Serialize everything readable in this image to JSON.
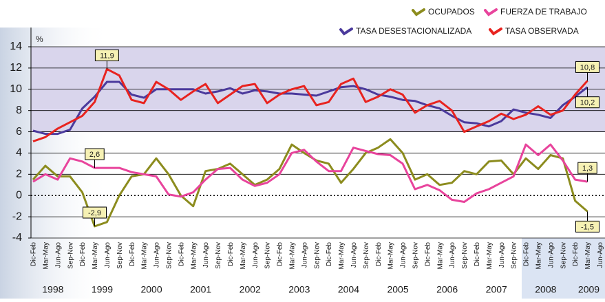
{
  "chart_data": {
    "type": "line",
    "y_unit": "%",
    "categories": [
      "Dic-Feb",
      "Mar-May",
      "Jun-Ago",
      "Sep-Nov",
      "Dic-Feb",
      "Mar-May",
      "Jun-Ago",
      "Sep-Nov",
      "Dic-Feb",
      "Mar-May",
      "Jun-Ago",
      "Sep-Nov",
      "Dic-Feb",
      "Mar-May",
      "Jun-Ago",
      "Sep-Nov",
      "Dic-Feb",
      "Mar-May",
      "Jun-Ago",
      "Sep-Nov",
      "Dic-Feb",
      "Mar-May",
      "Jun-Ago",
      "Sep-Nov",
      "Dic-Feb",
      "Mar-May",
      "Jun-Ago",
      "Sep-Nov",
      "Dic-Feb",
      "Mar-May",
      "Jun-Ago",
      "Sep-Nov",
      "Dic-Feb",
      "Mar-May",
      "Jun-Ago",
      "Sep-Nov",
      "Dic-Feb",
      "Mar-May",
      "Jun-Ago",
      "Sep-Nov",
      "Dic-Feb",
      "Mar-May",
      "Jun-Ago",
      "Sep-Nov",
      "Dic-Feb",
      "Mar-May",
      "Jun-Ago"
    ],
    "years": [
      "1998",
      "1999",
      "2000",
      "2001",
      "2002",
      "2003",
      "2004",
      "2005",
      "2006",
      "2007",
      "2008",
      "2009"
    ],
    "ylim": [
      -4,
      14
    ],
    "yticks": [
      -4,
      -2,
      0,
      2,
      4,
      6,
      8,
      10,
      12,
      14
    ],
    "grid": true,
    "series": [
      {
        "name": "OCUPADOS",
        "color": "#8c8c1e",
        "values": [
          1.5,
          2.8,
          1.8,
          1.8,
          0.3,
          -2.9,
          -2.5,
          0,
          1.8,
          2.0,
          3.5,
          2.0,
          0,
          -1.0,
          2.3,
          2.5,
          3.0,
          2.0,
          1.0,
          1.5,
          2.5,
          4.8,
          4.0,
          3.3,
          3.0,
          1.2,
          2.5,
          4.0,
          4.5,
          5.3,
          4.0,
          1.5,
          2.0,
          1.0,
          1.2,
          2.3,
          2.0,
          3.2,
          3.3,
          2.0,
          3.5,
          2.5,
          3.8,
          3.5,
          -0.5,
          -1.5,
          null
        ],
        "value_labels": [
          null,
          null,
          null,
          null,
          null,
          "-2,9",
          null,
          null,
          null,
          null,
          null,
          null,
          null,
          null,
          null,
          null,
          null,
          null,
          null,
          null,
          null,
          null,
          null,
          null,
          null,
          null,
          null,
          null,
          null,
          null,
          null,
          null,
          null,
          null,
          null,
          null,
          null,
          null,
          null,
          null,
          null,
          null,
          null,
          null,
          null,
          "-1,5",
          null
        ]
      },
      {
        "name": "FUERZA DE TRABAJO",
        "color": "#e8449c",
        "values": [
          1.3,
          2.0,
          1.5,
          3.5,
          3.2,
          2.6,
          2.6,
          2.6,
          2.2,
          2.0,
          1.8,
          0.1,
          -0.1,
          0.3,
          1.5,
          2.5,
          2.6,
          1.5,
          0.9,
          1.2,
          2.0,
          4.0,
          4.3,
          3.2,
          2.3,
          2.3,
          4.5,
          4.2,
          3.9,
          3.8,
          3.0,
          0.6,
          1.0,
          0.5,
          -0.4,
          -0.6,
          0.2,
          0.6,
          1.2,
          1.8,
          4.8,
          3.8,
          4.8,
          3.3,
          1.5,
          1.3,
          null
        ],
        "value_labels": [
          null,
          null,
          null,
          null,
          null,
          "2,6",
          null,
          null,
          null,
          null,
          null,
          null,
          null,
          null,
          null,
          null,
          null,
          null,
          null,
          null,
          null,
          null,
          null,
          null,
          null,
          null,
          null,
          null,
          null,
          null,
          null,
          null,
          null,
          null,
          null,
          null,
          null,
          null,
          null,
          null,
          null,
          null,
          null,
          null,
          null,
          "1,3",
          null
        ]
      },
      {
        "name": "TASA DESESTACIONALIZADA",
        "color": "#4b3a9c",
        "values": [
          6.1,
          5.8,
          5.8,
          6.2,
          8.2,
          9.3,
          10.7,
          10.7,
          9.5,
          9.2,
          10.0,
          10.0,
          10.0,
          10.0,
          9.6,
          9.8,
          10.1,
          9.6,
          9.9,
          9.8,
          9.6,
          9.6,
          9.5,
          9.4,
          9.8,
          10.2,
          10.3,
          10.0,
          9.5,
          9.3,
          9.0,
          8.9,
          8.5,
          8.2,
          7.5,
          6.9,
          6.8,
          6.5,
          7.0,
          8.1,
          7.8,
          7.6,
          7.3,
          8.5,
          9.3,
          10.2,
          null
        ],
        "value_labels": [
          null,
          null,
          null,
          null,
          null,
          null,
          null,
          null,
          null,
          null,
          null,
          null,
          null,
          null,
          null,
          null,
          null,
          null,
          null,
          null,
          null,
          null,
          null,
          null,
          null,
          null,
          null,
          null,
          null,
          null,
          null,
          null,
          null,
          null,
          null,
          null,
          null,
          null,
          null,
          null,
          null,
          null,
          null,
          null,
          null,
          "10,2",
          null
        ]
      },
      {
        "name": "TASA OBSERVADA",
        "color": "#e8231f",
        "values": [
          5.1,
          5.5,
          6.3,
          6.9,
          7.5,
          8.8,
          11.9,
          11.3,
          9.0,
          8.7,
          10.7,
          10.0,
          9.0,
          9.8,
          10.5,
          8.7,
          9.5,
          10.3,
          10.5,
          8.7,
          9.5,
          10.0,
          10.3,
          8.5,
          8.8,
          10.5,
          11.0,
          8.8,
          9.3,
          10.0,
          9.5,
          7.8,
          8.5,
          8.9,
          8.0,
          6.0,
          6.5,
          7.0,
          7.7,
          7.2,
          7.6,
          8.4,
          7.6,
          8.0,
          9.5,
          10.8,
          null
        ],
        "value_labels": [
          null,
          null,
          null,
          null,
          null,
          null,
          "11,9",
          null,
          null,
          null,
          null,
          null,
          null,
          null,
          null,
          null,
          null,
          null,
          null,
          null,
          null,
          null,
          null,
          null,
          null,
          null,
          null,
          null,
          null,
          null,
          null,
          null,
          null,
          null,
          null,
          null,
          null,
          null,
          null,
          null,
          null,
          null,
          null,
          null,
          null,
          "10,8",
          null
        ]
      }
    ]
  }
}
